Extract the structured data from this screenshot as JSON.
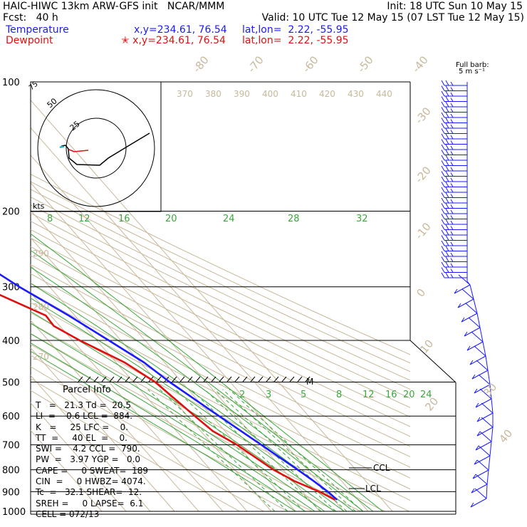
{
  "header": {
    "line1_left": "HAIC-HIWC 13km ARW-GFS init   NCAR/MMM",
    "line1_right": "Init: 18 UTC Sun 10 May 15",
    "line2_left": "Fcst:   40 h",
    "line2_right": "Valid: 10 UTC Tue 12 May 15 (07 LST Tue 12 May 15)",
    "temp_label": "Temperature",
    "temp_xy": "x,y=234.61, 76.54",
    "temp_latlon": "lat,lon=  2.22, -55.95",
    "dew_label": "Dewpoint",
    "dew_xy": "✭ x,y=234.61, 76.54",
    "dew_latlon": "lat,lon=  2.22, -55.95"
  },
  "barb_legend": {
    "line1": "Full barb:",
    "line2": "5 m s⁻¹"
  },
  "hodograph": {
    "rings": [
      "25",
      "50",
      "75"
    ],
    "unit": "kts"
  },
  "parcel_info": {
    "title": "Parcel Info",
    "rows": [
      "T   =   21.3 Td =  20.5",
      "LI  =    0.6 LCL =  884.",
      "K   =     25 LFC =    0.",
      "TT  =     40 EL  =    0.",
      "SWI =    4.2 CCL =  790.",
      "PW  =   3.97 YGP =   0.0",
      "CAPE =     0 SWEAT=  189",
      "CIN  =     0 HWBZ= 4074.",
      "Tc  =   32.1 SHEAR=  12.",
      "SREH =     0 LAPSE=  6.1",
      "CELL = 072/13"
    ]
  },
  "chart_data": {
    "type": "line",
    "chart_kind": "skew-t log-p",
    "y_axis": {
      "scale": "log",
      "label": "pressure (hPa)",
      "ticks": [
        100,
        200,
        300,
        400,
        500,
        600,
        700,
        800,
        900,
        1000
      ]
    },
    "isotherm_labels": [
      "-80",
      "-70",
      "-60",
      "-50",
      "-40",
      "-30",
      "-20",
      "-10",
      "0",
      "10",
      "20",
      "30",
      "40"
    ],
    "theta_labels_top": [
      "370",
      "380",
      "390",
      "400",
      "410",
      "420",
      "430",
      "440"
    ],
    "theta_labels_left": [
      "290",
      "280",
      "270"
    ],
    "mixing_ratio_labels_upper": [
      "8",
      "12",
      "16",
      "20",
      "24",
      "28",
      "32"
    ],
    "mixing_ratio_labels_lower": [
      "2",
      "3",
      "5",
      "8",
      "12",
      "16",
      "20",
      "24"
    ],
    "level_annotations": [
      "CCL",
      "LCL",
      "M"
    ],
    "series": [
      {
        "name": "Temperature",
        "color": "#1a1aff",
        "points": [
          {
            "p": 100,
            "t": -81.0
          },
          {
            "p": 120,
            "t": -78.0
          },
          {
            "p": 150,
            "t": -67.5
          },
          {
            "p": 200,
            "t": -53.0
          },
          {
            "p": 250,
            "t": -42.0
          },
          {
            "p": 300,
            "t": -32.5
          },
          {
            "p": 350,
            "t": -22.5
          },
          {
            "p": 400,
            "t": -15.0
          },
          {
            "p": 450,
            "t": -8.5
          },
          {
            "p": 500,
            "t": -5.0
          },
          {
            "p": 600,
            "t": 3.0
          },
          {
            "p": 700,
            "t": 10.0
          },
          {
            "p": 800,
            "t": 16.0
          },
          {
            "p": 850,
            "t": 18.5
          },
          {
            "p": 900,
            "t": 20.5
          },
          {
            "p": 940,
            "t": 21.3
          }
        ]
      },
      {
        "name": "Dewpoint",
        "color": "#e01010",
        "points": [
          {
            "p": 100,
            "t": -85.0
          },
          {
            "p": 120,
            "t": -86.0
          },
          {
            "p": 150,
            "t": -78.0
          },
          {
            "p": 180,
            "t": -72.0
          },
          {
            "p": 200,
            "t": -66.0
          },
          {
            "p": 250,
            "t": -53.0
          },
          {
            "p": 300,
            "t": -48.0
          },
          {
            "p": 350,
            "t": -32.0
          },
          {
            "p": 370,
            "t": -32.5
          },
          {
            "p": 400,
            "t": -27.0
          },
          {
            "p": 450,
            "t": -16.5
          },
          {
            "p": 500,
            "t": -11.0
          },
          {
            "p": 600,
            "t": -7.0
          },
          {
            "p": 650,
            "t": -5.0
          },
          {
            "p": 700,
            "t": 0.0
          },
          {
            "p": 800,
            "t": 6.0
          },
          {
            "p": 850,
            "t": 10.5
          },
          {
            "p": 900,
            "t": 17.0
          },
          {
            "p": 940,
            "t": 20.5
          }
        ]
      }
    ]
  }
}
